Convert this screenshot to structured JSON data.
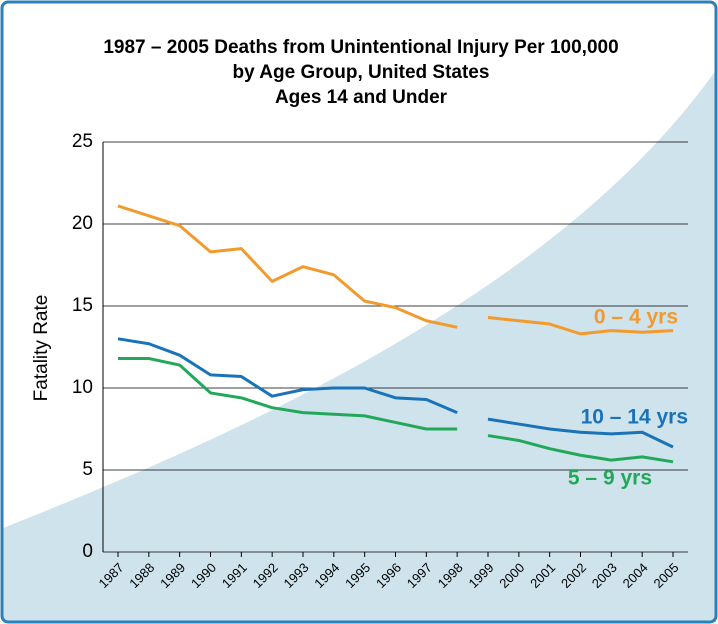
{
  "chart_data": {
    "type": "line",
    "title": "1987 – 2005 Deaths from Unintentional Injury Per 100,000",
    "subtitle": [
      "by Age Group, United States",
      "Ages 14 and Under"
    ],
    "y_label": "Fatality Rate",
    "categories": [
      "1987",
      "1988",
      "1989",
      "1990",
      "1991",
      "1992",
      "1993",
      "1994",
      "1995",
      "1996",
      "1997",
      "1998",
      "1999",
      "2000",
      "2001",
      "2002",
      "2003",
      "2004",
      "2005"
    ],
    "line_break_before": "1999",
    "series": [
      {
        "name": "0 – 4 yrs",
        "color": "#f29a2e",
        "values": [
          21.1,
          20.5,
          19.9,
          18.3,
          18.5,
          16.5,
          17.4,
          16.9,
          15.3,
          14.9,
          14.1,
          13.7,
          14.3,
          14.1,
          13.9,
          13.3,
          13.5,
          13.4,
          13.5
        ]
      },
      {
        "name": "10 – 14 yrs",
        "color": "#1a73b8",
        "values": [
          13.0,
          12.7,
          12.0,
          10.8,
          10.7,
          9.5,
          9.9,
          10.0,
          10.0,
          9.4,
          9.3,
          8.5,
          8.1,
          7.8,
          7.5,
          7.3,
          7.2,
          7.3,
          6.4
        ]
      },
      {
        "name": "5 – 9 yrs",
        "color": "#23a85a",
        "values": [
          11.8,
          11.8,
          11.4,
          9.7,
          9.4,
          8.8,
          8.5,
          8.4,
          8.3,
          7.9,
          7.5,
          7.5,
          7.1,
          6.8,
          6.3,
          5.9,
          5.6,
          5.8,
          5.5
        ]
      }
    ],
    "ylim": [
      0,
      25
    ],
    "yticks": [
      0,
      5,
      10,
      15,
      20,
      25
    ],
    "grid": true
  }
}
